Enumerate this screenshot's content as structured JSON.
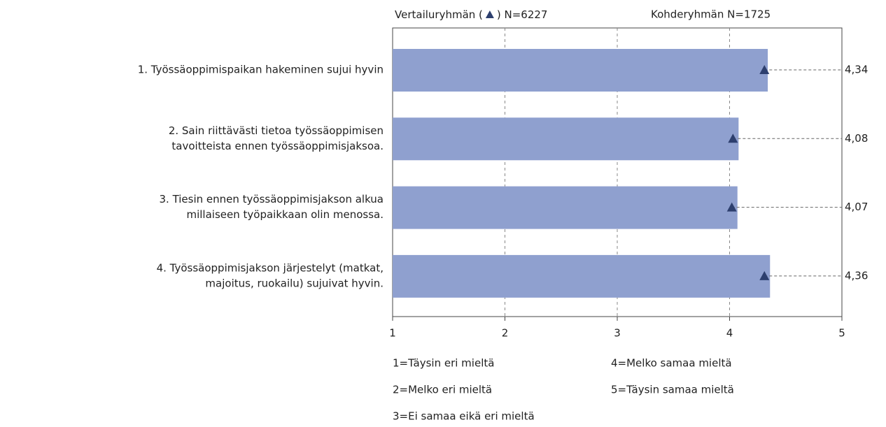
{
  "chart_data": {
    "type": "bar",
    "orientation": "horizontal",
    "header": {
      "comparison_label": [
        "Vertailuryhmän (",
        ") N=6227"
      ],
      "target_label": "Kohderyhmän N=1725"
    },
    "categories": [
      [
        "1. Työssäoppimispaikan hakeminen sujui hyvin"
      ],
      [
        "2. Sain riittävästi tietoa työssäoppimisen",
        "tavoitteista ennen työssäoppimisjaksoa."
      ],
      [
        "3. Tiesin ennen työssäoppimisjakson alkua",
        "millaiseen työpaikkaan olin menossa."
      ],
      [
        "4. Työssäoppimisjakson järjestelyt (matkat,",
        "majoitus, ruokailu) sujuivat hyvin."
      ]
    ],
    "values": [
      4.34,
      4.08,
      4.07,
      4.36
    ],
    "value_labels": [
      "4,34",
      "4,08",
      "4,07",
      "4,36"
    ],
    "comparison_values": [
      4.31,
      4.03,
      4.02,
      4.31
    ],
    "color": "#8fa0cf",
    "comparison_color": "#2d3f6e",
    "xlim": [
      1,
      5
    ],
    "xticks": [
      1,
      2,
      3,
      4,
      5
    ],
    "grid": true,
    "scale_legend": [
      "1=Täysin eri mieltä",
      "2=Melko eri mieltä",
      "3=Ei samaa eikä eri mieltä",
      "4=Melko samaa mieltä",
      "5=Täysin samaa mieltä"
    ]
  }
}
